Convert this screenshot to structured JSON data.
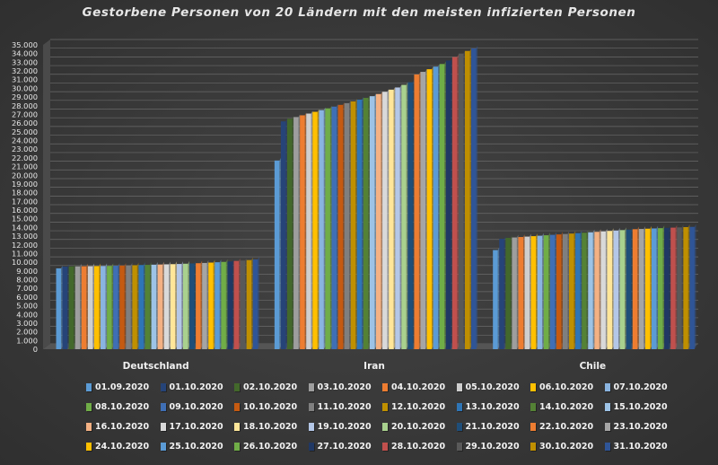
{
  "chart_data": {
    "type": "bar",
    "title": "Gestorbene Personen von 20 Ländern mit den meisten infizierten Personen",
    "categories": [
      "Deutschland",
      "Iran",
      "Chile"
    ],
    "ylim": [
      0,
      35000
    ],
    "ytick_step": 1000,
    "grid": true,
    "legend_position": "bottom",
    "colors": [
      "#5b9bd5",
      "#264478",
      "#43682b",
      "#9e9e9e",
      "#ed7d31",
      "#cfcfcf",
      "#ffc000",
      "#8ab4e0",
      "#70ad47",
      "#3f6fb5",
      "#c55a11",
      "#7f7f7f",
      "#bf9000",
      "#2e75b6",
      "#548235",
      "#9dc3e6",
      "#f4b183",
      "#d9d9d9",
      "#ffe699",
      "#b4c7e7",
      "#a9d18e",
      "#1f4e79",
      "#ed7d31",
      "#a5a5a5",
      "#ffc000",
      "#5b9bd5",
      "#70ad47",
      "#203864",
      "#c0504d",
      "#595959",
      "#bf8f00",
      "#2f5597"
    ],
    "series": [
      {
        "name": "01.09.2020",
        "values": [
          9300,
          21700,
          11400
        ]
      },
      {
        "name": "01.10.2020",
        "values": [
          9500,
          26200,
          12700
        ]
      },
      {
        "name": "02.10.2020",
        "values": [
          9520,
          26500,
          12800
        ]
      },
      {
        "name": "03.10.2020",
        "values": [
          9530,
          26700,
          12850
        ]
      },
      {
        "name": "04.10.2020",
        "values": [
          9540,
          26900,
          12900
        ]
      },
      {
        "name": "05.10.2020",
        "values": [
          9550,
          27100,
          12950
        ]
      },
      {
        "name": "06.10.2020",
        "values": [
          9560,
          27300,
          13000
        ]
      },
      {
        "name": "07.10.2020",
        "values": [
          9570,
          27500,
          13050
        ]
      },
      {
        "name": "08.10.2020",
        "values": [
          9580,
          27700,
          13100
        ]
      },
      {
        "name": "09.10.2020",
        "values": [
          9600,
          27900,
          13150
        ]
      },
      {
        "name": "10.10.2020",
        "values": [
          9620,
          28100,
          13200
        ]
      },
      {
        "name": "11.10.2020",
        "values": [
          9640,
          28300,
          13250
        ]
      },
      {
        "name": "12.10.2020",
        "values": [
          9660,
          28500,
          13300
        ]
      },
      {
        "name": "13.10.2020",
        "values": [
          9680,
          28700,
          13350
        ]
      },
      {
        "name": "14.10.2020",
        "values": [
          9700,
          28900,
          13400
        ]
      },
      {
        "name": "15.10.2020",
        "values": [
          9720,
          29100,
          13450
        ]
      },
      {
        "name": "16.10.2020",
        "values": [
          9740,
          29350,
          13500
        ]
      },
      {
        "name": "17.10.2020",
        "values": [
          9760,
          29600,
          13550
        ]
      },
      {
        "name": "18.10.2020",
        "values": [
          9780,
          29850,
          13600
        ]
      },
      {
        "name": "19.10.2020",
        "values": [
          9800,
          30100,
          13650
        ]
      },
      {
        "name": "20.10.2020",
        "values": [
          9830,
          30400,
          13700
        ]
      },
      {
        "name": "21.10.2020",
        "values": [
          9860,
          30700,
          13750
        ]
      },
      {
        "name": "22.10.2020",
        "values": [
          9890,
          31600,
          13800
        ]
      },
      {
        "name": "23.10.2020",
        "values": [
          9920,
          31900,
          13830
        ]
      },
      {
        "name": "24.10.2020",
        "values": [
          9960,
          32200,
          13860
        ]
      },
      {
        "name": "25.10.2020",
        "values": [
          10000,
          32500,
          13890
        ]
      },
      {
        "name": "26.10.2020",
        "values": [
          10040,
          32800,
          13920
        ]
      },
      {
        "name": "27.10.2020",
        "values": [
          10090,
          33200,
          13950
        ]
      },
      {
        "name": "28.10.2020",
        "values": [
          10150,
          33600,
          13980
        ]
      },
      {
        "name": "29.10.2020",
        "values": [
          10200,
          34000,
          14010
        ]
      },
      {
        "name": "30.10.2020",
        "values": [
          10250,
          34300,
          14040
        ]
      },
      {
        "name": "31.10.2020",
        "values": [
          10320,
          34600,
          14070
        ]
      }
    ]
  }
}
